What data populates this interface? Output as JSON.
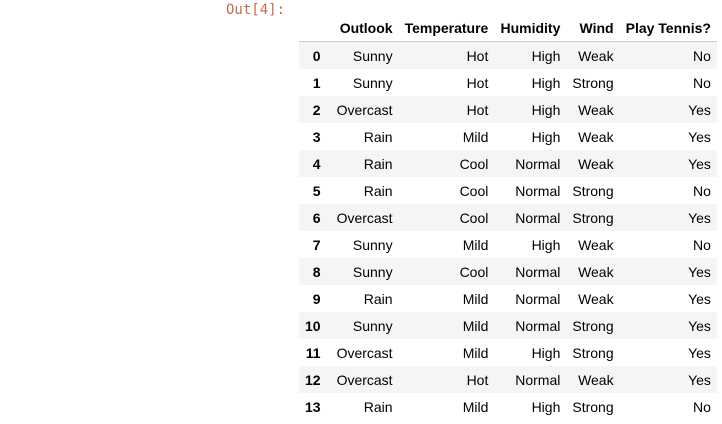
{
  "output_prompt": "Out[4]:",
  "table": {
    "index_header": "",
    "columns": [
      "Outlook",
      "Temperature",
      "Humidity",
      "Wind",
      "Play Tennis?"
    ],
    "rows": [
      {
        "index": "0",
        "cells": [
          "Sunny",
          "Hot",
          "High",
          "Weak",
          "No"
        ]
      },
      {
        "index": "1",
        "cells": [
          "Sunny",
          "Hot",
          "High",
          "Strong",
          "No"
        ]
      },
      {
        "index": "2",
        "cells": [
          "Overcast",
          "Hot",
          "High",
          "Weak",
          "Yes"
        ]
      },
      {
        "index": "3",
        "cells": [
          "Rain",
          "Mild",
          "High",
          "Weak",
          "Yes"
        ]
      },
      {
        "index": "4",
        "cells": [
          "Rain",
          "Cool",
          "Normal",
          "Weak",
          "Yes"
        ]
      },
      {
        "index": "5",
        "cells": [
          "Rain",
          "Cool",
          "Normal",
          "Strong",
          "No"
        ]
      },
      {
        "index": "6",
        "cells": [
          "Overcast",
          "Cool",
          "Normal",
          "Strong",
          "Yes"
        ]
      },
      {
        "index": "7",
        "cells": [
          "Sunny",
          "Mild",
          "High",
          "Weak",
          "No"
        ]
      },
      {
        "index": "8",
        "cells": [
          "Sunny",
          "Cool",
          "Normal",
          "Weak",
          "Yes"
        ]
      },
      {
        "index": "9",
        "cells": [
          "Rain",
          "Mild",
          "Normal",
          "Weak",
          "Yes"
        ]
      },
      {
        "index": "10",
        "cells": [
          "Sunny",
          "Mild",
          "Normal",
          "Strong",
          "Yes"
        ]
      },
      {
        "index": "11",
        "cells": [
          "Overcast",
          "Mild",
          "High",
          "Strong",
          "Yes"
        ]
      },
      {
        "index": "12",
        "cells": [
          "Overcast",
          "Hot",
          "Normal",
          "Weak",
          "Yes"
        ]
      },
      {
        "index": "13",
        "cells": [
          "Rain",
          "Mild",
          "High",
          "Strong",
          "No"
        ]
      }
    ]
  },
  "colors": {
    "prompt": "#b3562f",
    "row_stripe": "#f5f5f5",
    "header_border": "#cfcfcf"
  }
}
